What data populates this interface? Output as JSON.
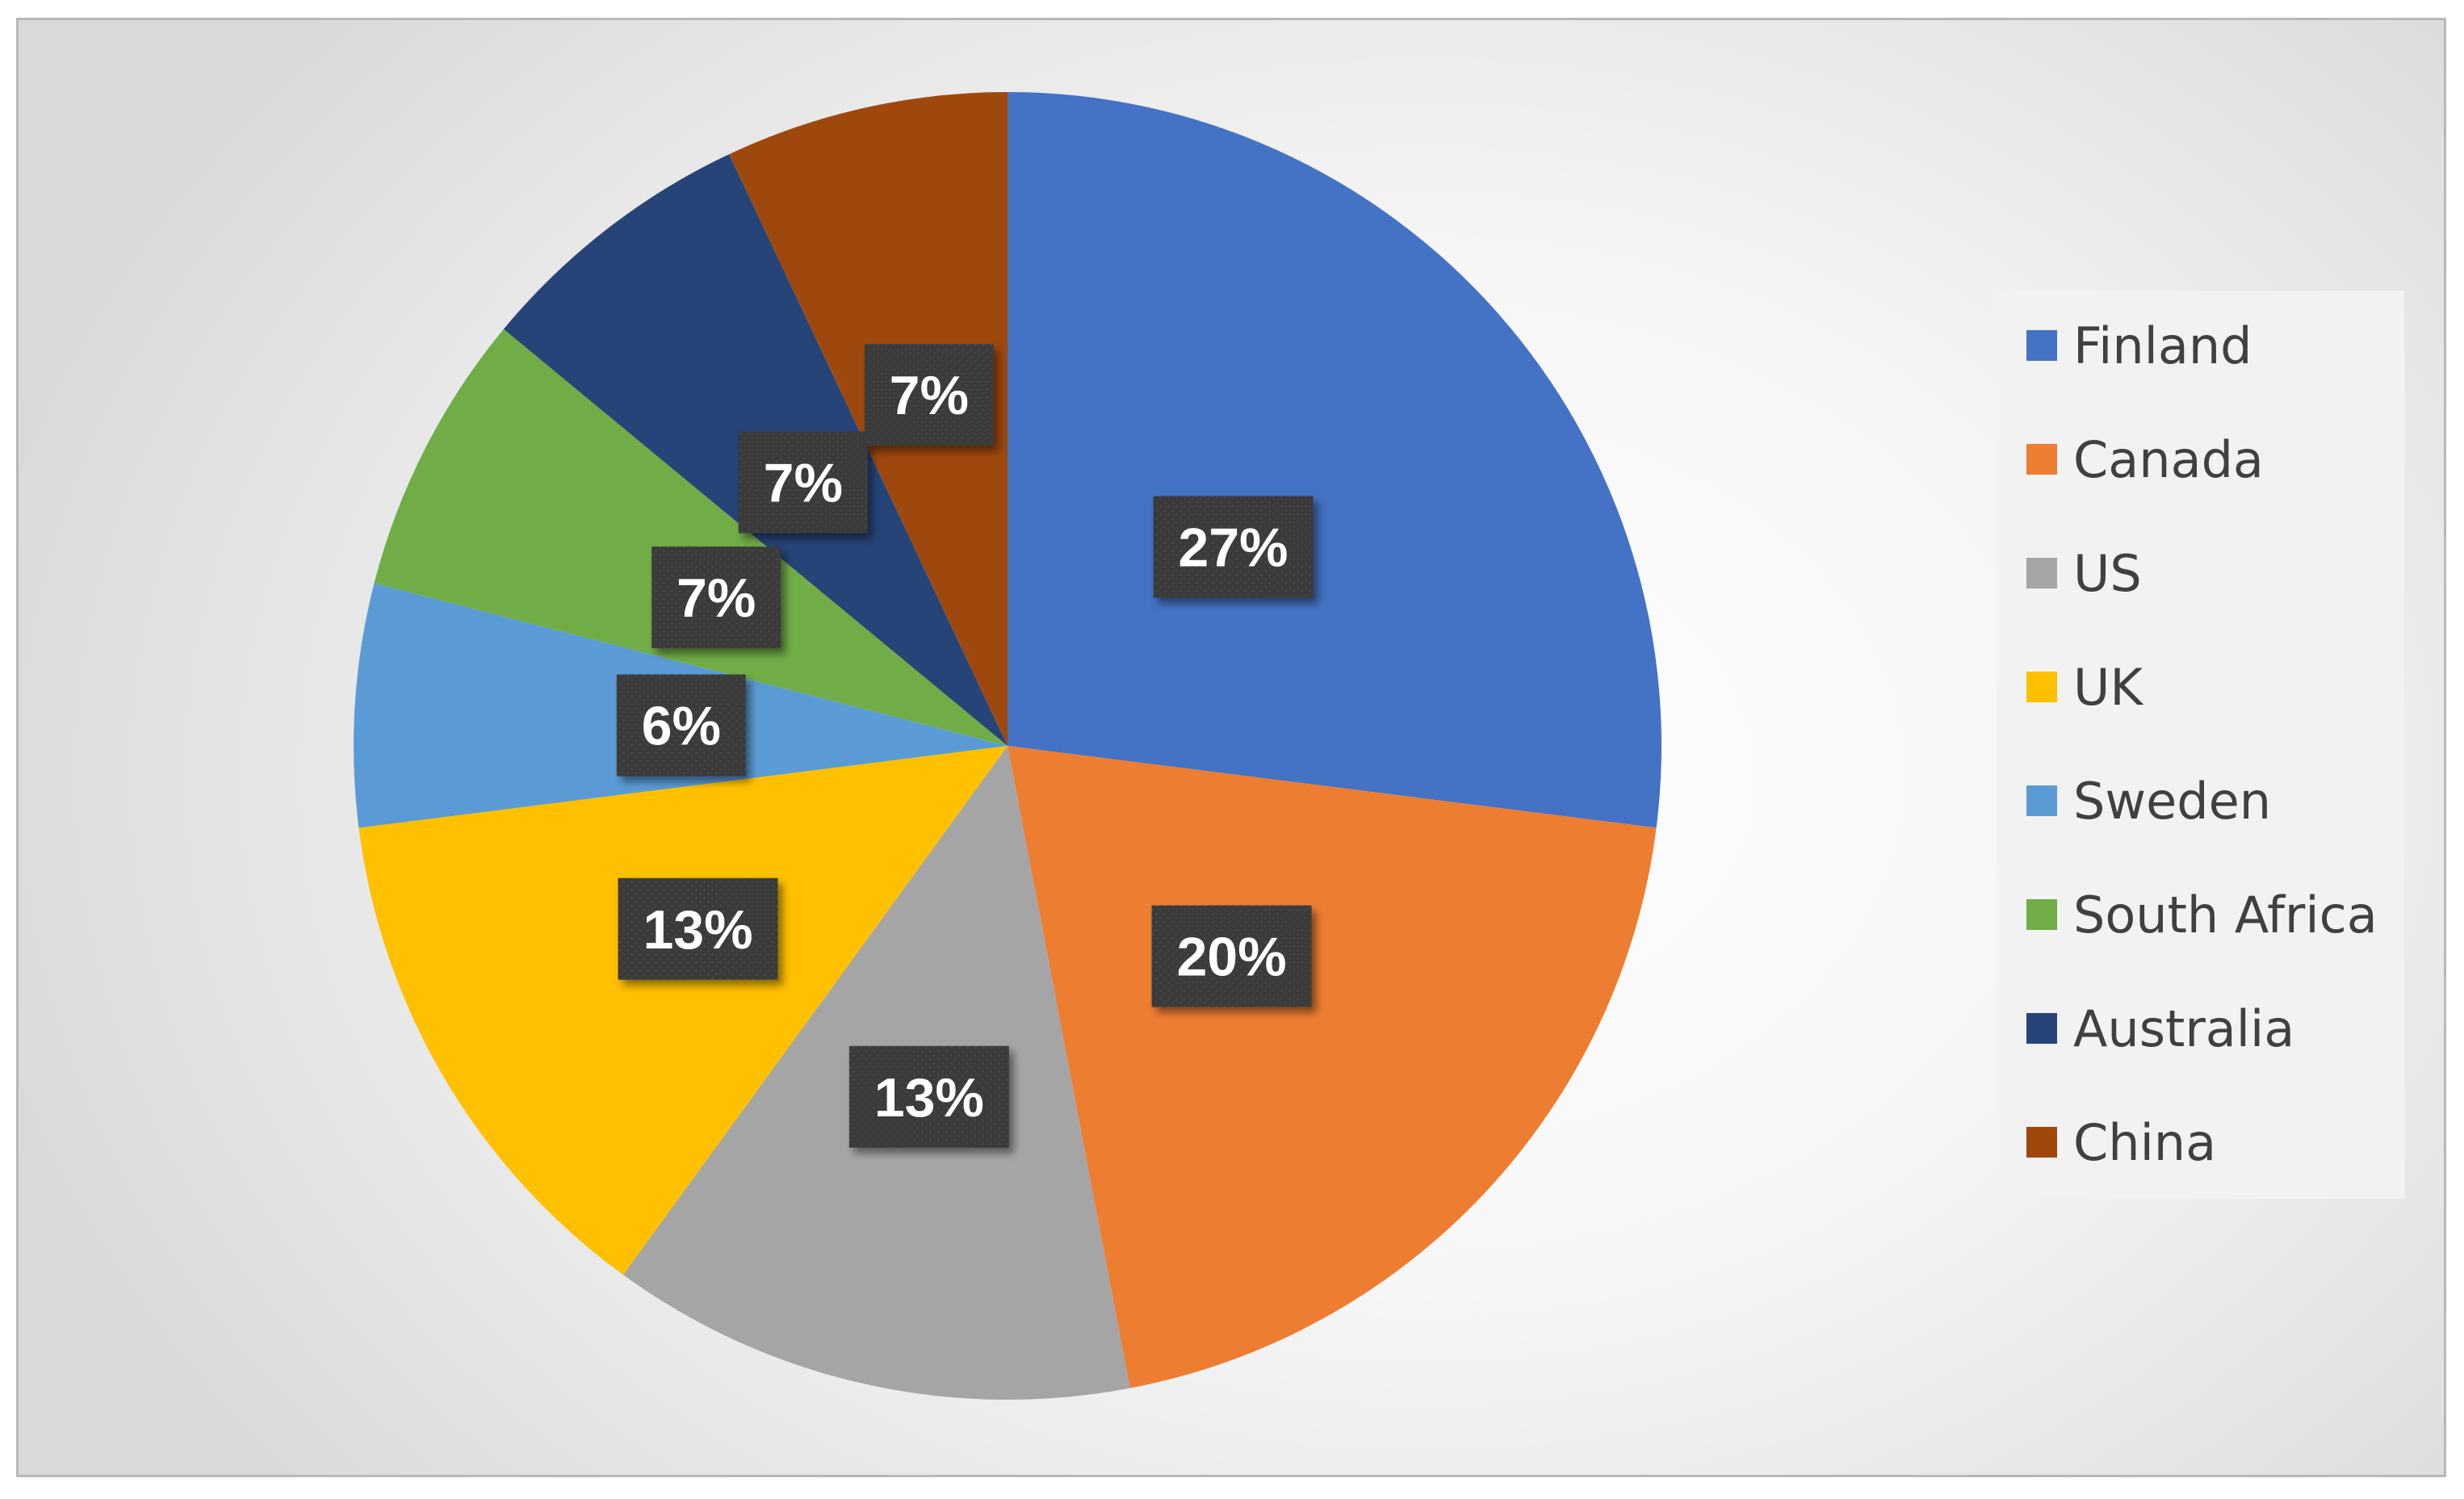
{
  "chart_data": {
    "type": "pie",
    "title": "",
    "categories": [
      "Finland",
      "Canada",
      "US",
      "UK",
      "Sweden",
      "South Africa",
      "Australia",
      "China"
    ],
    "values": [
      27,
      20,
      13,
      13,
      6,
      7,
      7,
      7
    ],
    "data_labels": [
      "27%",
      "20%",
      "13%",
      "13%",
      "6%",
      "7%",
      "7%",
      "7%"
    ],
    "colors": [
      "#4472C4",
      "#ED7D31",
      "#A5A5A5",
      "#FFC000",
      "#5B9BD5",
      "#70AD47",
      "#264478",
      "#9E480E"
    ],
    "start_angle": "12 o'clock",
    "direction": "clockwise",
    "legend": {
      "position": "right",
      "entries": [
        "Finland",
        "Canada",
        "US",
        "UK",
        "Sweden",
        "South Africa",
        "Australia",
        "China"
      ]
    },
    "data_label_style": "white bold text on dark gray box"
  }
}
